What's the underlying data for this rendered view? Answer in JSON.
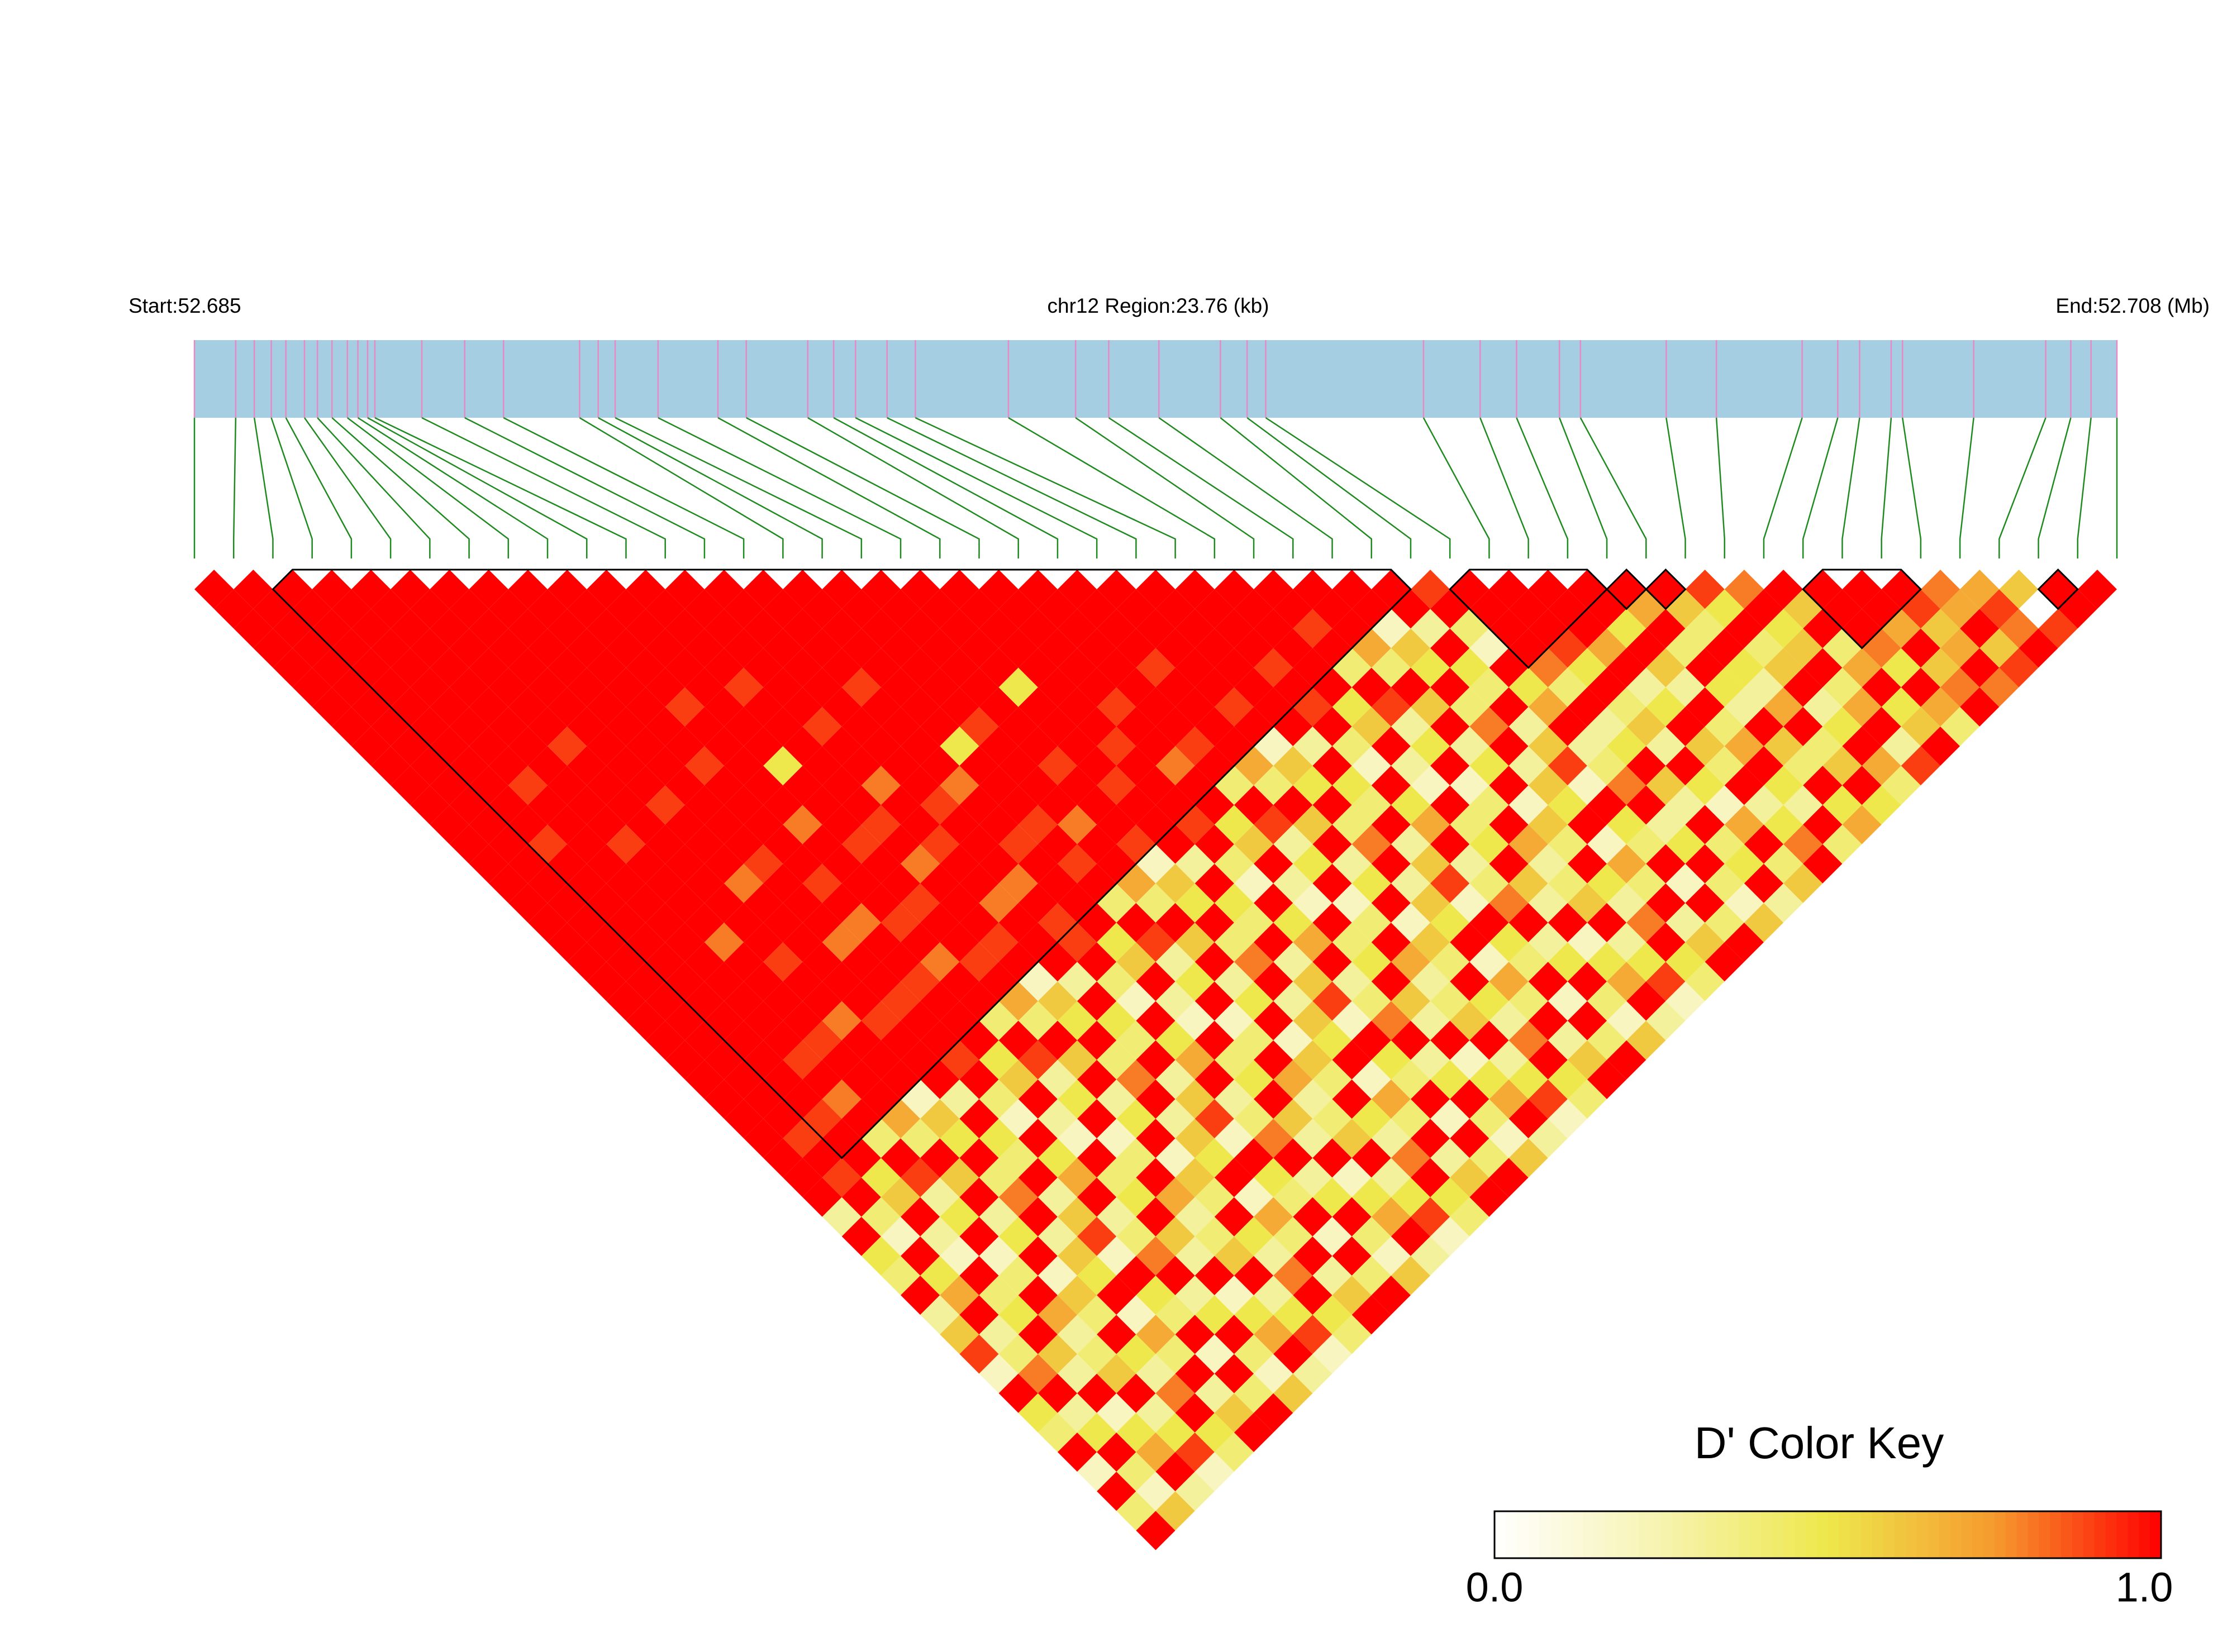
{
  "chart_data": {
    "type": "ld_heatmap",
    "start_label": "Start:52.685",
    "region_label": "chr12 Region:23.76 (kb)",
    "end_label": "End:52.708 (Mb)",
    "xlim": [
      0,
      23.76
    ],
    "positions_kb": [
      0,
      0.51,
      0.74,
      0.95,
      1.13,
      1.36,
      1.52,
      1.7,
      1.89,
      2.02,
      2.14,
      2.23,
      2.81,
      3.34,
      3.82,
      4.76,
      4.99,
      5.2,
      5.73,
      6.47,
      6.82,
      7.58,
      7.9,
      8.17,
      8.56,
      8.91,
      10.06,
      10.89,
      11.3,
      11.92,
      12.68,
      13.01,
      13.24,
      15.19,
      15.89,
      16.34,
      16.87,
      17.13,
      18.19,
      18.81,
      19.87,
      20.31,
      20.58,
      20.97,
      21.11,
      21.99,
      22.88,
      23.19,
      23.44,
      23.76
    ],
    "bar_color": "#a6cee3",
    "tick_color": "#e58ac4",
    "connector_color": "#1f8a1f",
    "dprime": [
      [
        1,
        1,
        1,
        1,
        1,
        1,
        1,
        1,
        1,
        1,
        1,
        1,
        1,
        1,
        1,
        1,
        1,
        1,
        1,
        1,
        1,
        1,
        1,
        1,
        1,
        1,
        1,
        1,
        1,
        1,
        1,
        1,
        0.3,
        1,
        0.5,
        0.4,
        1,
        0.3,
        0.6,
        0.9,
        0.2,
        1,
        0.5,
        0.4,
        1,
        0.2,
        1,
        0.4,
        1
      ],
      [
        1,
        1,
        1,
        1,
        1,
        1,
        1,
        1,
        1,
        1,
        1,
        1,
        1,
        1,
        1,
        1,
        1,
        1,
        1,
        1,
        1,
        1,
        1,
        1,
        1,
        1,
        1,
        1,
        0.9,
        1,
        0.9,
        1,
        0.4,
        0.2,
        1,
        0.5,
        0.7,
        1,
        0.3,
        0.4,
        0.8,
        1,
        0.3,
        0.5,
        1,
        0.4,
        0.2,
        0.6
      ],
      [
        1,
        1,
        1,
        1,
        1,
        1,
        1,
        1,
        1,
        1,
        1,
        1,
        1,
        0.9,
        1,
        1,
        1,
        1,
        1,
        1,
        1,
        1,
        1,
        1,
        1,
        1,
        1,
        0.9,
        1,
        1,
        0.5,
        0.6,
        1,
        0.3,
        0.2,
        1,
        0.4,
        0.5,
        1,
        0.6,
        0.3,
        1,
        0.2,
        0.5,
        0.7,
        1,
        0.3
      ],
      [
        1,
        1,
        1,
        1,
        1,
        1,
        1,
        1,
        1,
        1,
        0.9,
        1,
        1,
        1,
        1,
        1,
        1,
        1,
        1,
        1,
        1,
        1,
        1,
        1,
        0.9,
        1,
        0.8,
        1,
        0.4,
        1,
        0.9,
        0.3,
        0.5,
        1,
        0.2,
        0.4,
        1,
        0.7,
        0.3,
        0.4,
        0.6,
        1,
        0.3,
        0.5,
        0.9,
        0.2
      ],
      [
        1,
        1,
        1,
        1,
        1,
        1,
        1,
        1,
        1,
        1,
        1,
        1,
        1,
        0.9,
        1,
        1,
        1,
        1,
        0.8,
        1,
        1,
        1,
        1,
        0.9,
        1,
        1,
        1,
        0.7,
        0.4,
        1,
        0.6,
        1,
        0.3,
        0.5,
        1,
        0.2,
        0.6,
        0.4,
        1,
        0.5,
        0.3,
        0.8,
        1,
        0.5,
        0.4
      ],
      [
        1,
        1,
        1,
        1,
        1,
        1,
        1,
        1,
        0.9,
        1,
        1,
        1,
        1,
        1,
        1,
        1,
        1,
        1,
        1,
        0.9,
        1,
        1,
        0.8,
        1,
        1,
        1,
        0.2,
        0.6,
        0.5,
        1,
        0.4,
        0.8,
        1,
        0.3,
        0.6,
        0.5,
        1,
        0.2,
        0.7,
        0.4,
        1,
        0.3,
        0.6,
        1
      ],
      [
        1,
        1,
        1,
        1,
        1,
        1,
        1,
        1,
        1,
        1,
        1,
        0.9,
        1,
        1,
        1,
        0.8,
        1,
        1,
        1,
        1,
        1,
        1,
        0.9,
        1,
        1,
        1,
        0.3,
        1,
        0.5,
        0.4,
        1,
        0.3,
        0.6,
        0.9,
        0.2,
        1,
        0.5,
        0.4,
        1,
        0.2,
        1,
        0.4,
        1
      ],
      [
        1,
        1,
        1,
        1,
        1,
        1,
        1,
        1,
        1,
        1,
        1,
        1,
        1,
        1,
        0.9,
        1,
        1,
        1,
        0.8,
        1,
        1,
        0.9,
        1,
        1,
        0.9,
        1,
        0.4,
        0.2,
        1,
        0.5,
        0.7,
        1,
        0.3,
        0.4,
        0.8,
        1,
        0.3,
        0.5,
        1,
        0.4,
        0.2,
        0.6
      ],
      [
        1,
        1,
        1,
        1,
        1,
        1,
        1,
        1,
        1,
        0.9,
        1,
        1,
        1,
        1,
        1,
        0.9,
        1,
        0.8,
        1,
        1,
        0.9,
        1,
        1,
        1,
        0.5,
        0.6,
        1,
        0.3,
        0.2,
        1,
        0.4,
        0.5,
        1,
        0.6,
        0.3,
        1,
        0.2,
        0.5,
        0.7,
        1,
        0.3
      ],
      [
        1,
        1,
        1,
        1,
        1,
        1,
        0.9,
        1,
        1,
        1,
        1,
        1,
        0.8,
        1,
        1,
        1,
        1,
        0.9,
        1,
        0.8,
        1,
        1,
        0.4,
        1,
        0.9,
        0.3,
        0.5,
        1,
        0.2,
        0.4,
        1,
        0.7,
        0.3,
        0.4,
        0.6,
        1,
        0.3,
        0.5,
        0.9,
        0.2
      ],
      [
        1,
        1,
        1,
        1,
        1,
        1,
        1,
        1,
        1,
        0.5,
        1,
        1,
        1,
        0.9,
        1,
        1,
        0.9,
        1,
        1,
        0.9,
        1,
        0.7,
        0.4,
        1,
        0.6,
        1,
        0.3,
        0.5,
        1,
        0.2,
        0.6,
        0.4,
        1,
        0.5,
        0.3,
        0.8,
        1,
        0.5,
        0.4
      ],
      [
        1,
        1,
        1,
        1,
        1,
        0.9,
        1,
        1,
        1,
        1,
        1,
        1,
        0.9,
        1,
        0.8,
        1,
        1,
        1,
        0.9,
        1,
        0.2,
        0.6,
        0.5,
        1,
        0.4,
        0.8,
        1,
        0.3,
        0.6,
        0.5,
        1,
        0.2,
        0.7,
        0.4,
        1,
        0.3,
        0.6,
        1
      ],
      [
        1,
        1,
        1,
        1,
        1,
        1,
        1,
        0.9,
        1,
        1,
        0.8,
        1,
        1,
        0.9,
        1,
        1,
        0.8,
        1,
        1,
        1,
        0.3,
        1,
        0.5,
        0.4,
        1,
        0.3,
        0.6,
        0.9,
        0.2,
        1,
        0.5,
        0.4,
        1,
        0.2,
        1,
        0.4,
        1
      ],
      [
        1,
        1,
        1,
        1,
        1,
        1,
        1,
        1,
        1,
        1,
        1,
        0.9,
        1,
        1,
        1,
        0.8,
        1,
        0.9,
        0.9,
        1,
        0.4,
        0.2,
        1,
        0.5,
        0.7,
        1,
        0.3,
        0.4,
        0.8,
        1,
        0.3,
        0.5,
        1,
        0.4,
        0.2,
        0.6
      ],
      [
        1,
        1,
        1,
        1,
        1,
        0.9,
        1,
        1,
        1,
        1,
        0.8,
        1,
        1,
        0.9,
        1,
        1,
        1,
        1,
        0.5,
        0.6,
        1,
        0.3,
        0.2,
        1,
        0.4,
        0.5,
        1,
        0.6,
        0.3,
        1,
        0.2,
        0.5,
        0.7,
        1,
        0.3
      ],
      [
        1,
        1,
        1,
        1,
        1,
        1,
        1,
        1,
        0.5,
        1,
        1,
        1,
        0.9,
        1,
        0.9,
        1,
        0.4,
        1,
        0.9,
        0.3,
        0.5,
        1,
        0.2,
        0.4,
        1,
        0.7,
        0.3,
        0.4,
        0.6,
        1,
        0.3,
        0.5,
        0.9,
        0.2
      ],
      [
        1,
        1,
        1,
        1,
        1,
        1,
        1,
        0.9,
        1,
        1,
        1,
        1,
        0.8,
        1,
        1,
        0.7,
        0.4,
        1,
        0.6,
        1,
        0.3,
        0.5,
        1,
        0.2,
        0.6,
        0.4,
        1,
        0.5,
        0.3,
        0.8,
        1,
        0.5,
        0.4
      ],
      [
        1,
        1,
        1,
        1,
        1,
        1,
        1,
        1,
        1,
        0.9,
        1,
        1,
        1,
        0.9,
        0.2,
        0.6,
        0.5,
        1,
        0.4,
        0.8,
        1,
        0.3,
        0.6,
        0.5,
        1,
        0.2,
        0.7,
        0.4,
        1,
        0.3,
        0.6,
        1
      ],
      [
        1,
        1,
        1,
        1,
        1,
        0.5,
        1,
        1,
        1,
        1,
        0.9,
        1,
        1,
        1,
        0.3,
        1,
        0.5,
        0.4,
        1,
        0.3,
        0.6,
        0.9,
        0.2,
        1,
        0.5,
        0.4,
        1,
        0.2,
        1,
        0.4,
        1
      ],
      [
        1,
        1,
        1,
        1,
        1,
        1,
        1,
        1,
        0.9,
        1,
        1,
        1,
        0.9,
        1,
        0.4,
        0.2,
        1,
        0.5,
        0.7,
        1,
        0.3,
        0.4,
        0.8,
        1,
        0.3,
        0.5,
        1,
        0.4,
        0.2,
        0.6
      ],
      [
        1,
        1,
        1,
        1,
        1,
        1,
        0.9,
        1,
        1,
        0.8,
        1,
        1,
        0.5,
        0.6,
        1,
        0.3,
        0.2,
        1,
        0.4,
        0.5,
        1,
        0.6,
        0.3,
        1,
        0.2,
        0.5,
        0.7,
        1,
        0.3
      ],
      [
        1,
        1,
        1,
        1,
        1,
        1,
        1,
        1,
        0.9,
        1,
        0.4,
        1,
        0.9,
        0.3,
        0.5,
        1,
        0.2,
        0.4,
        1,
        0.7,
        0.3,
        0.4,
        0.6,
        1,
        0.3,
        0.5,
        0.9,
        0.2
      ],
      [
        1,
        1,
        1,
        1,
        0.9,
        1,
        1,
        1,
        1,
        0.7,
        0.4,
        1,
        0.6,
        1,
        0.3,
        0.5,
        1,
        0.2,
        0.6,
        0.4,
        1,
        0.5,
        0.3,
        0.8,
        1,
        0.5,
        0.4
      ],
      [
        1,
        1,
        1,
        1,
        1,
        1,
        0.9,
        1,
        0.2,
        0.6,
        0.5,
        1,
        0.4,
        0.8,
        1,
        0.3,
        0.6,
        0.5,
        1,
        0.2,
        0.7,
        0.4,
        1,
        0.3,
        0.6,
        1
      ],
      [
        1,
        1,
        1,
        1,
        1,
        1,
        1,
        1,
        0.3,
        1,
        0.5,
        0.4,
        1,
        0.3,
        0.6,
        0.9,
        0.2,
        1,
        0.5,
        0.4,
        1,
        0.2,
        1,
        0.4,
        1
      ],
      [
        1,
        1,
        1,
        1,
        0.9,
        1,
        0.9,
        1,
        0.4,
        0.2,
        1,
        0.5,
        0.7,
        1,
        0.3,
        0.4,
        0.8,
        1,
        0.3,
        0.5,
        1,
        0.4,
        0.2,
        0.6
      ],
      [
        1,
        1,
        1,
        1,
        1,
        1,
        0.5,
        0.6,
        1,
        0.3,
        0.2,
        1,
        0.4,
        0.5,
        1,
        0.6,
        0.3,
        1,
        0.2,
        0.5,
        0.7,
        1,
        0.3
      ],
      [
        1,
        1,
        0.9,
        1,
        0.4,
        1,
        0.9,
        0.3,
        0.5,
        1,
        0.2,
        0.4,
        1,
        0.7,
        0.3,
        0.4,
        0.6,
        1,
        0.3,
        0.5,
        0.9,
        0.2
      ],
      [
        1,
        1,
        1,
        0.7,
        0.4,
        1,
        0.6,
        1,
        0.3,
        0.5,
        1,
        0.2,
        0.6,
        0.4,
        1,
        0.5,
        0.3,
        0.8,
        1,
        0.5,
        0.4
      ],
      [
        1,
        1,
        0.2,
        0.6,
        0.5,
        1,
        0.4,
        0.8,
        1,
        0.3,
        0.6,
        0.5,
        1,
        0.2,
        0.7,
        0.4,
        1,
        0.3,
        0.6,
        1
      ],
      [
        1,
        1,
        0.3,
        1,
        0.5,
        0.4,
        1,
        0.3,
        0.6,
        0.9,
        0.2,
        1,
        0.5,
        0.4,
        1,
        0.2,
        1,
        0.4,
        1
      ],
      [
        0.9,
        1,
        0.4,
        0.2,
        1,
        0.5,
        0.7,
        1,
        0.3,
        0.4,
        0.8,
        1,
        0.3,
        0.5,
        1,
        0.4,
        0.2,
        0.6
      ],
      [
        1,
        1,
        1,
        1,
        0.8,
        0.4,
        1,
        0.3,
        0.5,
        1,
        0.6,
        0.3,
        1,
        0.4,
        0.5,
        1,
        0.3
      ],
      [
        1,
        1,
        1,
        0.9,
        0.5,
        1,
        0.4,
        0.6,
        0.3,
        1,
        0.5,
        0.2,
        0.7,
        1,
        0.4,
        0.6
      ],
      [
        1,
        1,
        1,
        0.7,
        1,
        0.3,
        0.5,
        1,
        0.6,
        0.4,
        1,
        0.3,
        0.5,
        0.8,
        1
      ],
      [
        1,
        1,
        0.5,
        1,
        0.6,
        0.3,
        1,
        0.4,
        0.7,
        1,
        0.5,
        0.3,
        1,
        0.4
      ],
      [
        1,
        0.7,
        1,
        0.4,
        1,
        0.5,
        0.3,
        1,
        0.6,
        0.4,
        1,
        0.5,
        0.7
      ],
      [
        1,
        0.6,
        0.4,
        1,
        0.5,
        0.3,
        0.7,
        1,
        0.4,
        0.6,
        1,
        0.5
      ],
      [
        0.9,
        0.5,
        1,
        0.4,
        0.6,
        1,
        0.3,
        0.5,
        1,
        0.7,
        0.4
      ],
      [
        0.8,
        1,
        0.5,
        0.6,
        1,
        0.4,
        0.7,
        1,
        0.3,
        0.9
      ],
      [
        1,
        0.6,
        1,
        0.4,
        0.7,
        1,
        0.5,
        0.6,
        1
      ],
      [
        1,
        1,
        1,
        0.8,
        0.5,
        1,
        0.7,
        0.4
      ],
      [
        1,
        1,
        0.7,
        1,
        0.6,
        0.8,
        1
      ],
      [
        1,
        0.9,
        0.6,
        0.7,
        1,
        0.8
      ],
      [
        0.8,
        0.7,
        1,
        0.6,
        0.9
      ],
      [
        0.7,
        0.9,
        0.8,
        1
      ],
      [
        0.6,
        0,
        0.9
      ],
      [
        1,
        1
      ],
      [
        1
      ]
    ],
    "blocks": [
      [
        2,
        31
      ],
      [
        32,
        36
      ],
      [
        36,
        37
      ],
      [
        37,
        38
      ],
      [
        41,
        44
      ],
      [
        47,
        48
      ]
    ],
    "color_scale": [
      "#ffffff",
      "#f6f3b0",
      "#eee84c",
      "#f69a2e",
      "#ff0000"
    ],
    "clim": [
      0,
      1
    ],
    "colorbar_title": "D' Color Key",
    "colorbar_ticks": [
      {
        "value": 0,
        "label": "0.0"
      },
      {
        "value": 1,
        "label": "1.0"
      }
    ]
  }
}
